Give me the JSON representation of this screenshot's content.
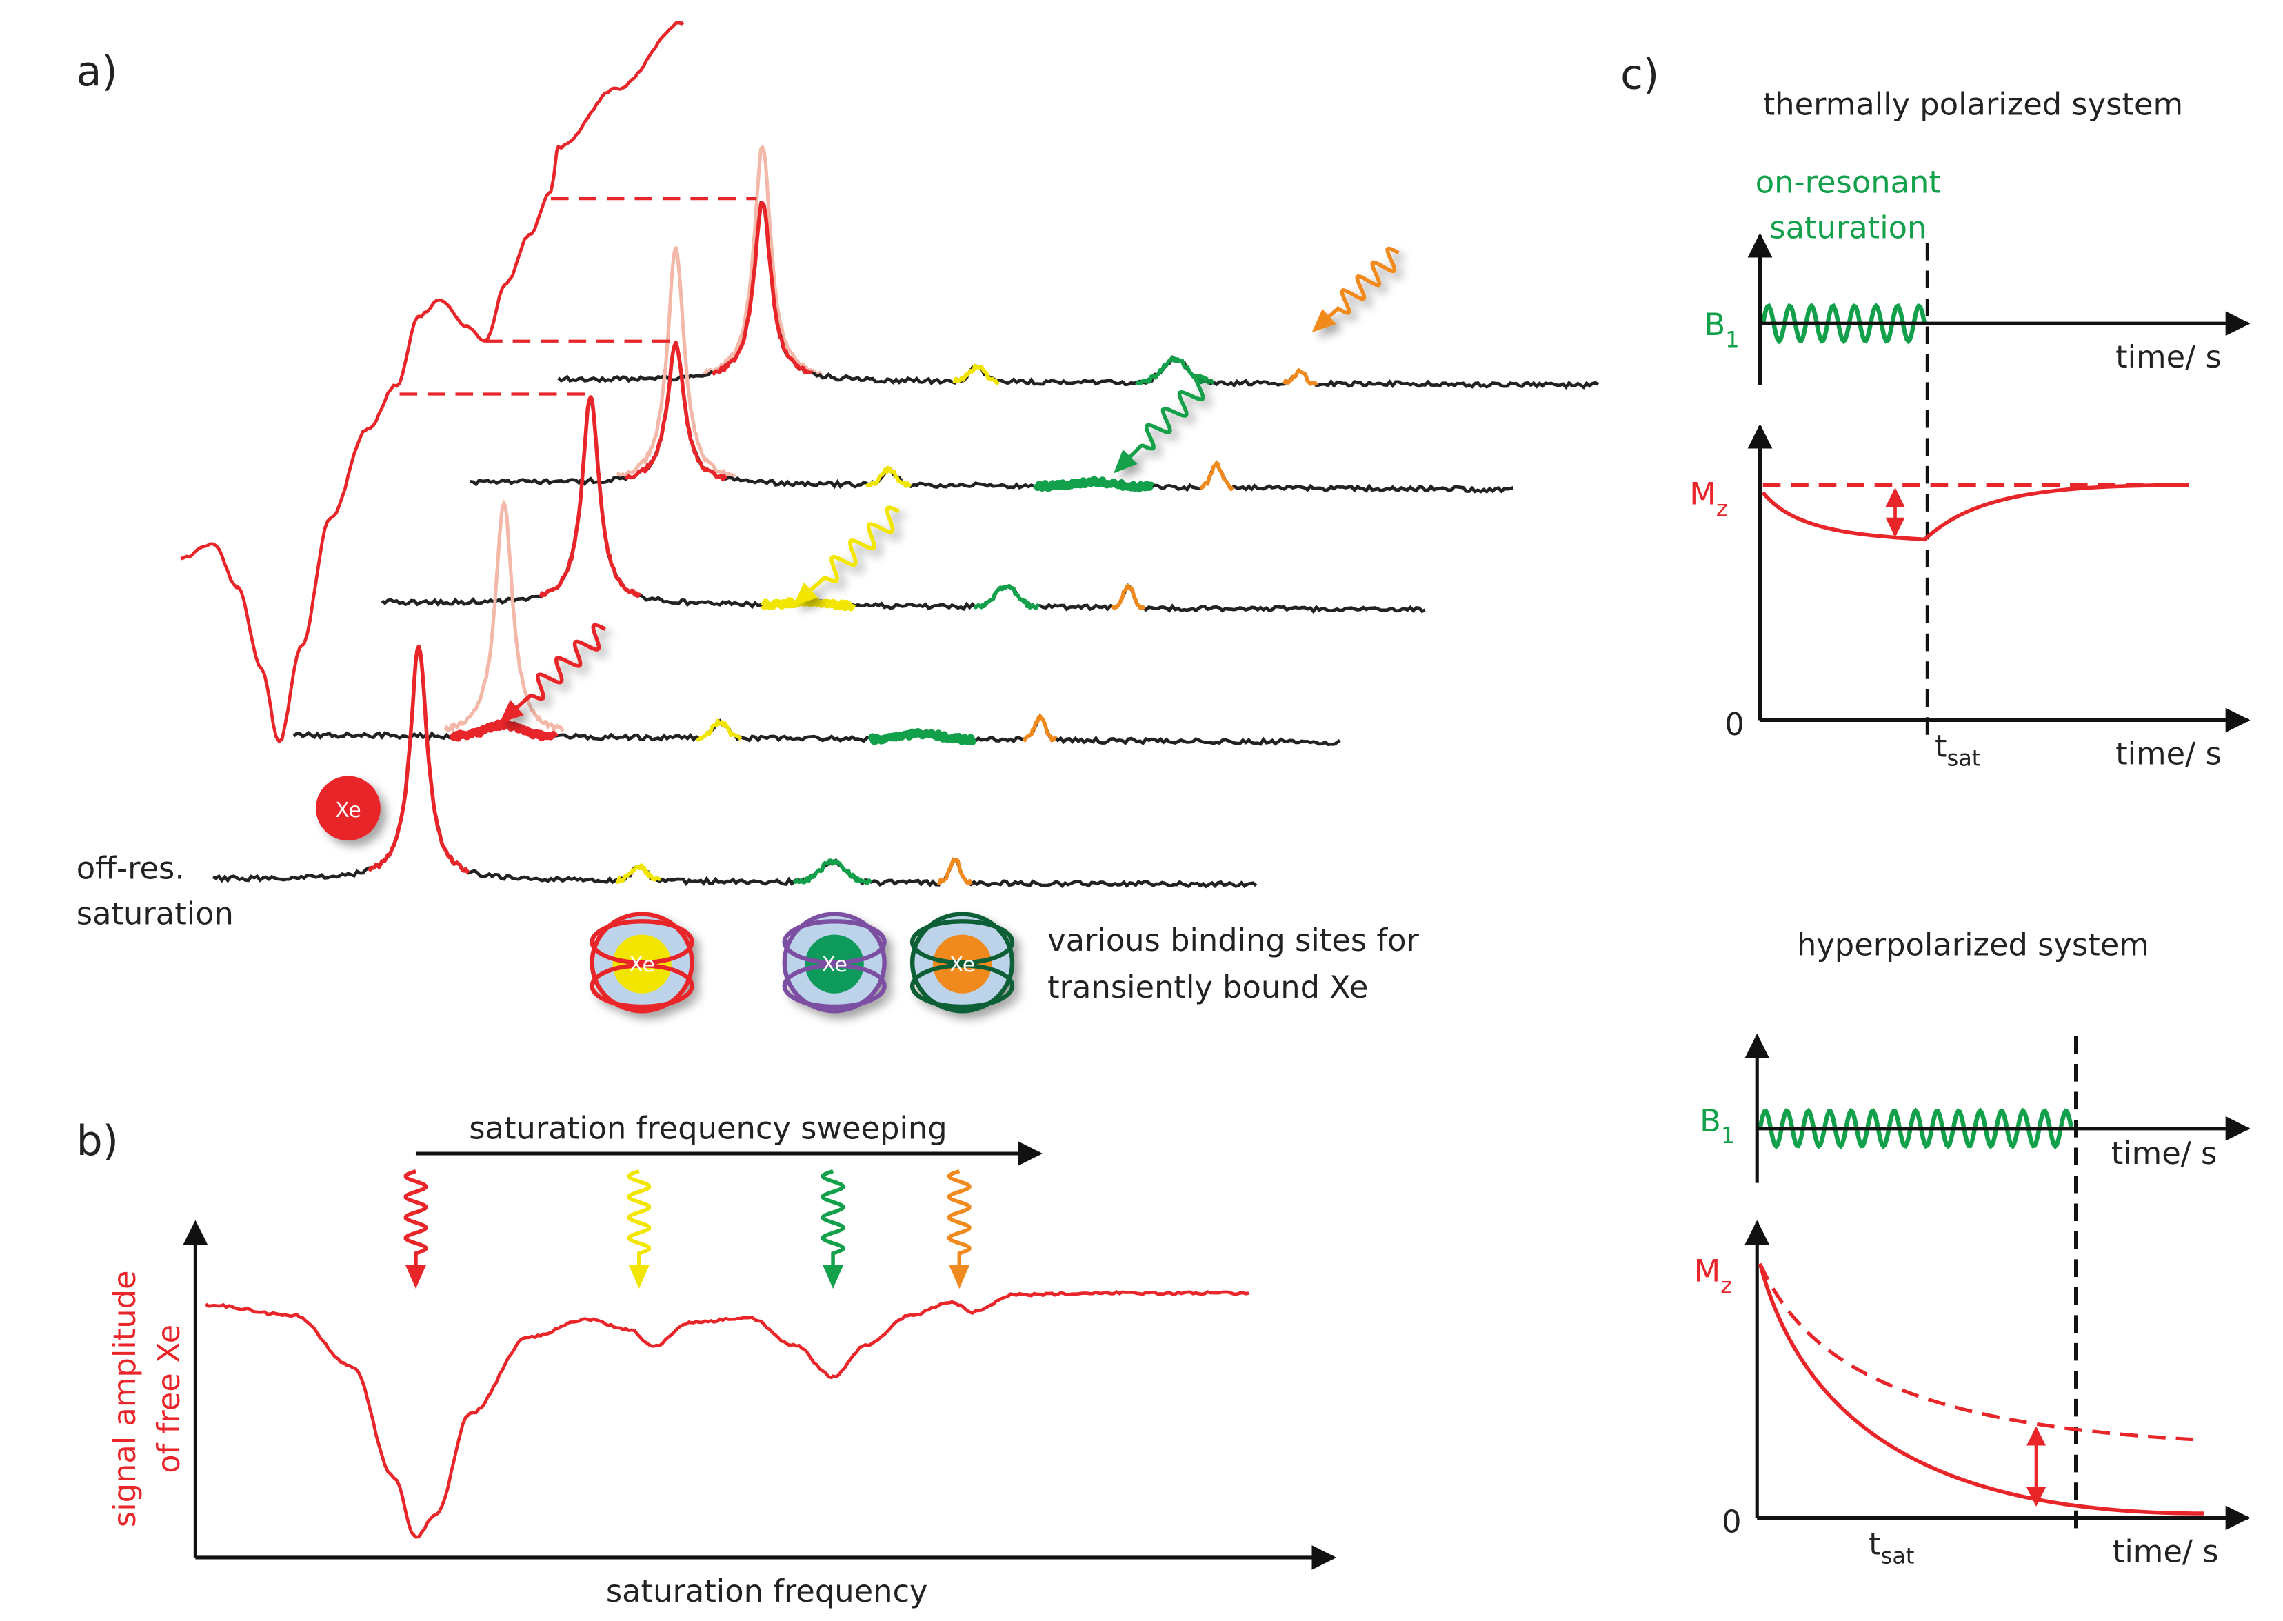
{
  "panel_a": {
    "label": "a)",
    "off_resonance": [
      "off-res.",
      "saturation"
    ],
    "xe_free": "Xe",
    "xe_bound": [
      "Xe",
      "Xe",
      "Xe"
    ],
    "binding_sites": [
      "various binding sites for",
      "transiently bound Xe"
    ]
  },
  "panel_b": {
    "label": "b)",
    "sweep": "saturation frequency sweeping",
    "y_axis": [
      "signal amplitude",
      "of free Xe"
    ],
    "x_axis": "saturation frequency"
  },
  "panel_c": {
    "label": "c)",
    "thermal": {
      "title": "thermally polarized system",
      "saturation": [
        "on-resonant",
        "saturation"
      ],
      "b1": {
        "symbol": "B",
        "sub": "1"
      },
      "mz": {
        "symbol": "M",
        "sub": "z"
      },
      "time_axes": [
        "time/ s",
        "time/ s"
      ],
      "zero": "0",
      "tsat": {
        "symbol": "t",
        "sub": "sat"
      }
    },
    "hyper": {
      "title": "hyperpolarized system",
      "b1": {
        "symbol": "B",
        "sub": "1"
      },
      "mz": {
        "symbol": "M",
        "sub": "z"
      },
      "time_axes": [
        "time/ s",
        "time/ s"
      ],
      "zero": "0",
      "tsat": {
        "symbol": "t",
        "sub": "sat"
      }
    }
  }
}
